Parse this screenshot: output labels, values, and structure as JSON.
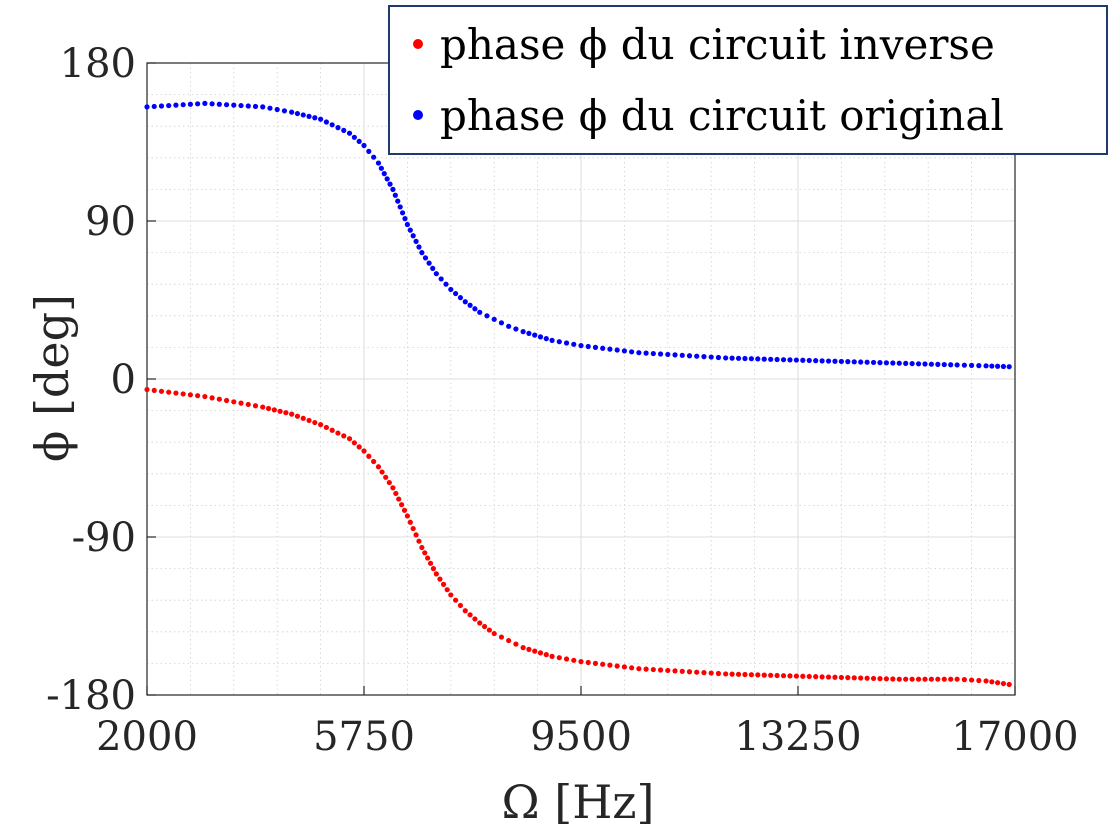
{
  "chart_data": {
    "type": "scatter",
    "xlabel": "Ω [Hz]",
    "ylabel": "ϕ [deg]",
    "xlim": [
      2000,
      17000
    ],
    "ylim": [
      -180,
      180
    ],
    "xticks": [
      2000,
      5750,
      9500,
      13250,
      17000
    ],
    "yticks": [
      -180,
      -90,
      0,
      90,
      180
    ],
    "x_tick_labels": [
      "2000",
      "5750",
      "9500",
      "13250",
      "17000"
    ],
    "y_tick_labels": [
      "-180",
      "-90",
      "0",
      "90",
      "180"
    ],
    "grid": true,
    "minor_grid": true,
    "legend_position": "top-right",
    "series": [
      {
        "name": "phase ϕ du circuit inverse",
        "color": "#ff0000",
        "x": [
          2000,
          2500,
          3000,
          3500,
          4000,
          4500,
          5000,
          5500,
          5750,
          6000,
          6250,
          6500,
          6750,
          7000,
          7250,
          7500,
          7750,
          8000,
          8250,
          8500,
          9000,
          9500,
          10000,
          10500,
          11000,
          11500,
          12000,
          13000,
          14000,
          15000,
          16000,
          16500,
          16900
        ],
        "y": [
          -6,
          -8,
          -10,
          -13,
          -16,
          -20,
          -26,
          -34,
          -41,
          -50,
          -62,
          -78,
          -96,
          -111,
          -123,
          -132,
          -139,
          -145,
          -149,
          -153,
          -158,
          -161,
          -163,
          -165,
          -166,
          -167,
          -168,
          -169,
          -170,
          -171,
          -171,
          -172,
          -174
        ]
      },
      {
        "name": "phase ϕ du circuit original",
        "color": "#0000ff",
        "x": [
          2000,
          2500,
          3000,
          3500,
          4000,
          4500,
          5000,
          5500,
          5750,
          6000,
          6250,
          6500,
          6750,
          7000,
          7250,
          7500,
          7750,
          8000,
          8250,
          8500,
          9000,
          9500,
          10000,
          10500,
          11000,
          11500,
          12000,
          13000,
          14000,
          15000,
          16000,
          16500,
          16900
        ],
        "y": [
          155,
          156,
          157,
          156,
          155,
          152,
          148,
          140,
          133,
          123,
          108,
          88,
          72,
          60,
          51,
          44,
          38,
          34,
          30,
          27,
          22,
          19,
          17,
          15,
          14,
          13,
          12,
          11,
          10,
          9,
          8,
          7.5,
          7
        ]
      }
    ]
  }
}
